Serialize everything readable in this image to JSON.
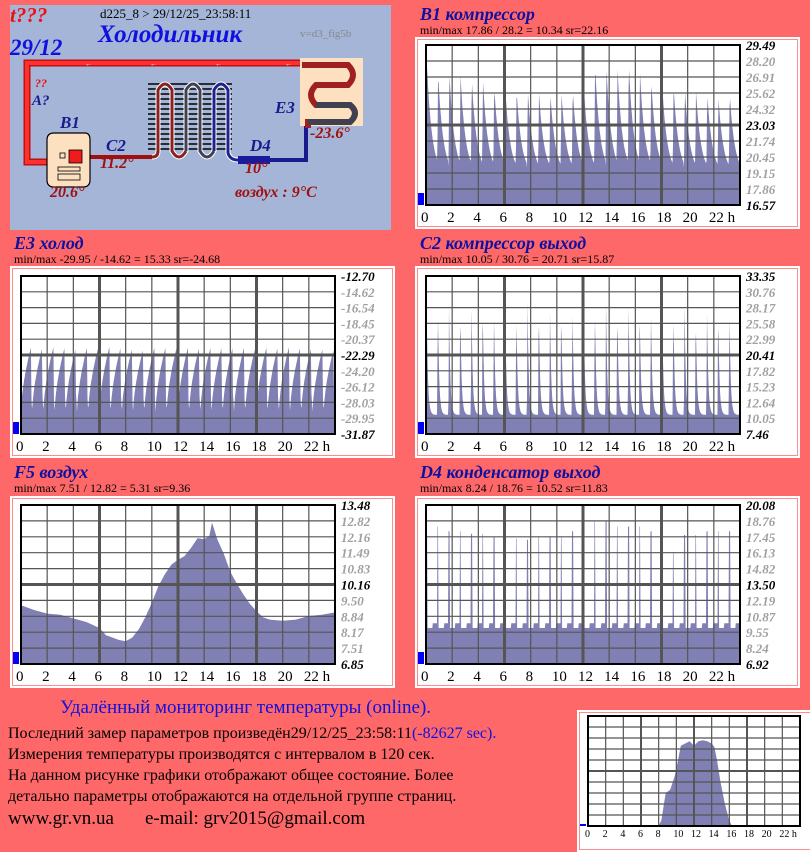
{
  "diagram": {
    "status": "t???",
    "date": "29/12",
    "header": "d225_8  >  29/12/25_23:58:11",
    "title": "Холодильник",
    "version": "v=d3_fig5b",
    "unknown_mark": "??",
    "sensor_a": "A?",
    "b1_label": "B1",
    "b1_value": "20.6°",
    "c2_label": "C2",
    "c2_value": "11.2°",
    "d4_label": "D4",
    "d4_value": "10°",
    "e3_label": "E3",
    "e3_value": "-23.6°",
    "air": "воздух : 9°C",
    "colors": {
      "hot": "#ee1c1c",
      "cold": "#1a1a8c",
      "panel": "#a4b5d8"
    }
  },
  "chart_data": [
    {
      "id": "b1",
      "type": "area",
      "title": "B1 компрессор",
      "info": "min/max   17.86 / 28.2 = 10.34       sr=22.16",
      "ylim": [
        16.57,
        29.49
      ],
      "ytick_labels": [
        "29.49",
        "28.20",
        "26.91",
        "25.62",
        "24.32",
        "23.03",
        "21.74",
        "20.45",
        "19.15",
        "17.86",
        "16.57"
      ],
      "xtick_labels": [
        "0",
        "2",
        "4",
        "6",
        "8",
        "10",
        "12",
        "14",
        "16",
        "18",
        "20",
        "22 h"
      ],
      "xlim": [
        0,
        24
      ],
      "cycle_peaks": [
        28.0,
        27.2,
        27.3,
        27.0,
        26.8,
        26.6,
        26.2,
        25.8,
        25.8,
        25.8,
        25.6,
        25.7,
        25.6,
        25.9,
        26.0,
        27.8,
        27.8,
        27.5,
        28.0,
        27.3,
        26.7,
        26.0,
        26.1,
        26.0,
        25.7,
        25.6,
        25.2,
        25.6
      ],
      "cycle_base": 19.0,
      "color": "#8080b4"
    },
    {
      "id": "e3",
      "type": "area",
      "title": "E3 холод",
      "info": "min/max   -29.95 / -14.62 = 15.33       sr=-24.68",
      "ylim": [
        -31.87,
        -12.7
      ],
      "ytick_labels": [
        "-12.70",
        "-14.62",
        "-16.54",
        "-18.45",
        "-20.37",
        "-22.29",
        "-24.20",
        "-26.12",
        "-28.03",
        "-29.95",
        "-31.87"
      ],
      "xtick_labels": [
        "0",
        "2",
        "4",
        "6",
        "8",
        "10",
        "12",
        "14",
        "16",
        "18",
        "20",
        "22 h"
      ],
      "xlim": [
        0,
        24
      ],
      "cycle_peaks": [
        -21.3,
        -21.4,
        -21.3,
        -21.3,
        -21.4,
        -21.3,
        -21.3,
        -21.2,
        -21.3,
        -21.6,
        -21.6,
        -21.4,
        -21.3,
        -21.3,
        -21.3,
        -21.3,
        -21.4,
        -21.3,
        -21.2,
        -21.3,
        -21.4,
        -21.3,
        -21.3,
        -21.3,
        -21.3,
        -21.3,
        -21.5,
        -21.5
      ],
      "cycle_base": -29.3,
      "color": "#8080b4"
    },
    {
      "id": "c2",
      "type": "area",
      "title": "C2 компрессор выход",
      "info": "min/max   10.05 / 30.76 = 20.71       sr=15.87",
      "ylim": [
        7.46,
        33.35
      ],
      "ytick_labels": [
        "33.35",
        "30.76",
        "28.17",
        "25.58",
        "22.99",
        "20.41",
        "17.82",
        "15.23",
        "12.64",
        "10.05",
        "7.46"
      ],
      "xtick_labels": [
        "0",
        "2",
        "4",
        "6",
        "8",
        "10",
        "12",
        "14",
        "16",
        "18",
        "20",
        "22 h"
      ],
      "xlim": [
        0,
        24
      ],
      "cycle_peaks": [
        30.2,
        29.9,
        29.0,
        29.6,
        29.5,
        29.5,
        28.8,
        29.3,
        28.8,
        29.6,
        29.6,
        28.8,
        29.0,
        29.4,
        30.0,
        29.8,
        29.4,
        29.5,
        29.8,
        29.1,
        29.3,
        29.0,
        29.1,
        29.0,
        28.3,
        28.8,
        28.4,
        28.7
      ],
      "cycle_base": 10.6,
      "color": "#8080b4"
    },
    {
      "id": "f5",
      "type": "area",
      "title": "F5 воздух",
      "info": "min/max   7.51 / 12.82 = 5.31       sr=9.36",
      "ylim": [
        6.85,
        13.48
      ],
      "ytick_labels": [
        "13.48",
        "12.82",
        "12.16",
        "11.49",
        "10.83",
        "10.16",
        "9.50",
        "8.84",
        "8.17",
        "7.51",
        "6.85"
      ],
      "xtick_labels": [
        "0",
        "2",
        "4",
        "6",
        "8",
        "10",
        "12",
        "14",
        "16",
        "18",
        "20",
        "22 h"
      ],
      "xlim": [
        0,
        24
      ],
      "x": [
        0,
        1,
        2,
        3,
        4,
        5,
        6,
        6.5,
        7,
        7.5,
        8,
        8.5,
        9,
        9.5,
        10,
        10.5,
        11,
        11.5,
        12,
        12.5,
        13,
        13.5,
        14,
        14.4,
        14.6,
        15,
        15.5,
        16,
        16.5,
        17,
        17.5,
        18,
        18.5,
        19,
        20,
        21,
        22,
        23,
        24
      ],
      "y": [
        9.3,
        9.1,
        8.95,
        8.9,
        8.75,
        8.6,
        8.35,
        8.05,
        7.95,
        7.85,
        7.8,
        7.95,
        8.3,
        8.8,
        9.4,
        10.1,
        10.6,
        11.0,
        11.2,
        11.35,
        11.7,
        12.1,
        12.05,
        12.2,
        12.75,
        12.05,
        11.45,
        10.7,
        10.2,
        9.75,
        9.35,
        9.05,
        8.8,
        8.7,
        8.65,
        8.7,
        8.85,
        8.9,
        9.0
      ],
      "color": "#8080b4"
    },
    {
      "id": "d4",
      "type": "area",
      "title": "D4 конденсатор выход",
      "info": "min/max   8.24 / 18.76 = 10.52       sr=11.83",
      "ylim": [
        6.92,
        20.08
      ],
      "ytick_labels": [
        "20.08",
        "18.76",
        "17.45",
        "16.13",
        "14.82",
        "13.50",
        "12.19",
        "10.87",
        "9.55",
        "8.24",
        "6.92"
      ],
      "xtick_labels": [
        "0",
        "2",
        "4",
        "6",
        "8",
        "10",
        "12",
        "14",
        "16",
        "18",
        "20",
        "22 h"
      ],
      "xlim": [
        0,
        24
      ],
      "cycle_peaks": [
        18.3,
        18.3,
        17.9,
        17.9,
        17.7,
        17.7,
        17.4,
        17.4,
        17.3,
        17.2,
        17.5,
        17.5,
        17.5,
        17.9,
        18.2,
        18.8,
        18.8,
        18.3,
        18.3,
        18.3,
        17.9,
        17.9,
        16.2,
        17.6,
        17.6,
        17.9,
        17.9,
        17.9
      ],
      "cycle_base": 9.9,
      "color": "#8080b4"
    },
    {
      "id": "mini",
      "type": "area",
      "title": "",
      "xtick_labels": [
        "0",
        "2",
        "4",
        "6",
        "8",
        "10",
        "12",
        "14",
        "16",
        "18",
        "20",
        "22 h"
      ],
      "xlim": [
        0,
        24
      ],
      "ylim": [
        0,
        1
      ],
      "x": [
        0,
        8,
        8.3,
        8.8,
        9.3,
        9.8,
        10.2,
        10.5,
        11,
        11.5,
        12,
        12.5,
        13,
        13.5,
        14,
        14.3,
        14.6,
        15,
        15.5,
        16,
        16.3,
        24
      ],
      "y": [
        0,
        0,
        0.05,
        0.3,
        0.33,
        0.45,
        0.6,
        0.73,
        0.75,
        0.77,
        0.73,
        0.77,
        0.78,
        0.77,
        0.75,
        0.72,
        0.6,
        0.4,
        0.2,
        0.05,
        0,
        0
      ],
      "color": "#8080b4"
    }
  ],
  "footer": {
    "heading": "Удалённый мониторинг температуры (online).",
    "last_prefix": "Последний замер параметров произведён",
    "last_time": "29/12/25_23:58:11",
    "last_delta": "(-82627 sec).",
    "interval": "Измерения температуры  производятся с интервалом в 120 сек.",
    "note1": "На данном рисунке графики отображают общее состояние. Более",
    "note2": "детально параметры отображаются на отдельной группе страниц.",
    "website": "www.gr.vn.ua",
    "email": "e-mail: grv2015@gmail.com"
  }
}
